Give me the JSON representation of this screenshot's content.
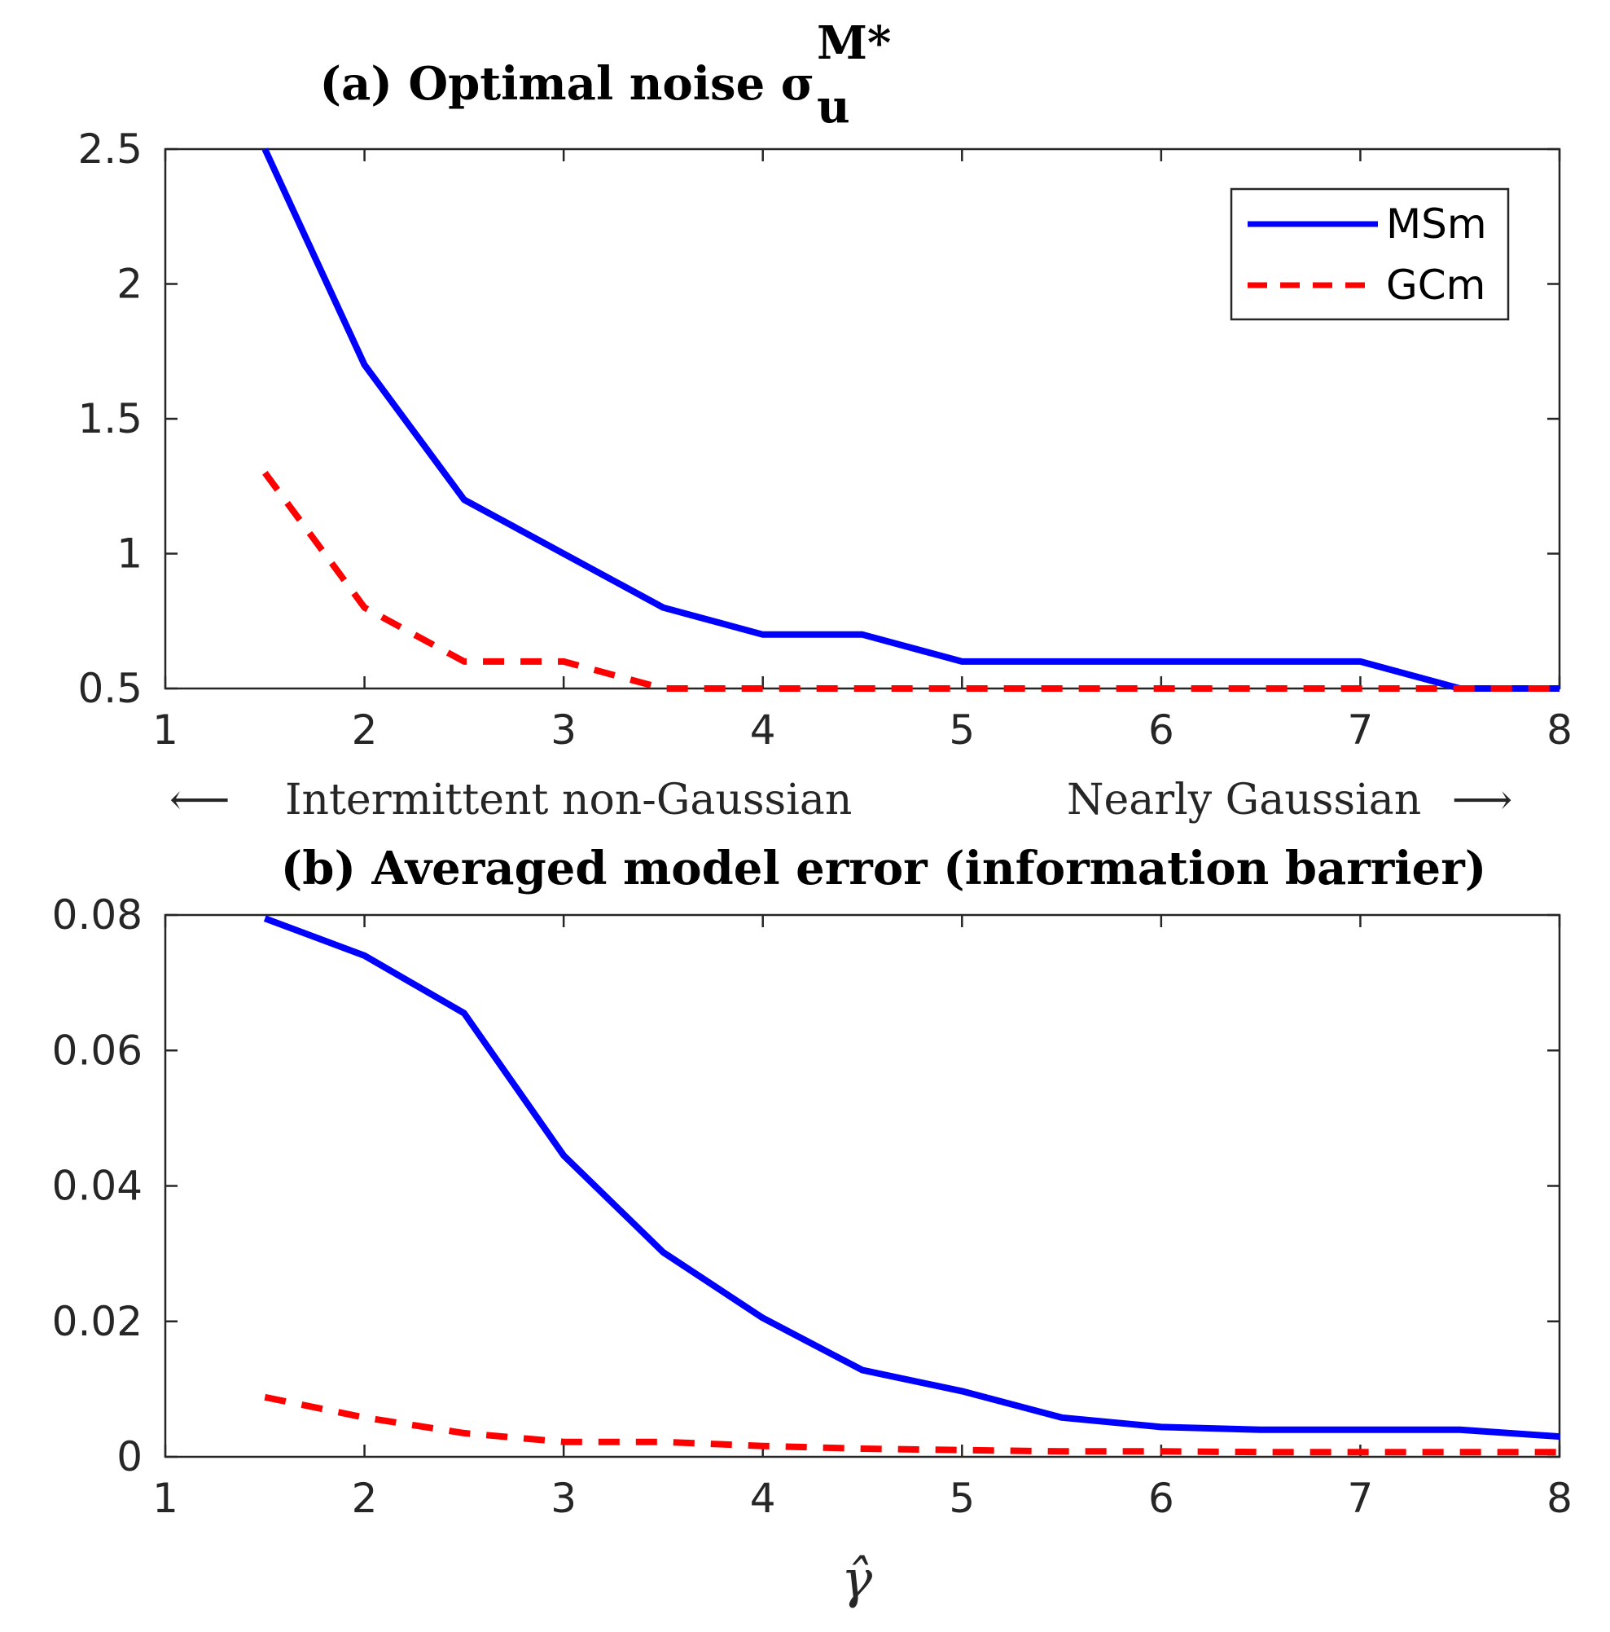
{
  "chart_data": [
    {
      "id": "a",
      "type": "line",
      "title": "(a) Optimal noise σ",
      "title_sub": "u",
      "title_sup": "M*",
      "xlim": [
        1,
        8
      ],
      "ylim": [
        0.5,
        2.5
      ],
      "xticks": [
        1,
        2,
        3,
        4,
        5,
        6,
        7,
        8
      ],
      "yticks": [
        0.5,
        1,
        1.5,
        2,
        2.5
      ],
      "ytick_labels": [
        "0.5",
        "1",
        "1.5",
        "2",
        "2.5"
      ],
      "legend": {
        "position": "top-right",
        "entries": [
          "MSm",
          "GCm"
        ]
      },
      "series": [
        {
          "name": "MSm",
          "color": "#0000ff",
          "style": "solid",
          "x": [
            1.5,
            2,
            2.5,
            3,
            3.5,
            4,
            4.5,
            5,
            5.5,
            6,
            6.5,
            7,
            7.5,
            8
          ],
          "y": [
            2.5,
            1.7,
            1.2,
            1.0,
            0.8,
            0.7,
            0.7,
            0.6,
            0.6,
            0.6,
            0.6,
            0.6,
            0.5,
            0.5
          ]
        },
        {
          "name": "GCm",
          "color": "#ff0000",
          "style": "dashed",
          "x": [
            1.5,
            2,
            2.5,
            3,
            3.5,
            4,
            4.5,
            5,
            5.5,
            6,
            6.5,
            7,
            7.5,
            8
          ],
          "y": [
            1.3,
            0.8,
            0.6,
            0.6,
            0.5,
            0.5,
            0.5,
            0.5,
            0.5,
            0.5,
            0.5,
            0.5,
            0.5,
            0.5
          ]
        }
      ],
      "annotations": {
        "left_arrow": "⟵",
        "left": "Intermittent non-Gaussian",
        "right": "Nearly Gaussian",
        "right_arrow": "⟶"
      }
    },
    {
      "id": "b",
      "type": "line",
      "title": "(b)  Averaged model error (information barrier)",
      "xlabel": "γ̂",
      "xlim": [
        1,
        8
      ],
      "ylim": [
        0,
        0.08
      ],
      "xticks": [
        1,
        2,
        3,
        4,
        5,
        6,
        7,
        8
      ],
      "yticks": [
        0,
        0.02,
        0.04,
        0.06,
        0.08
      ],
      "ytick_labels": [
        "0",
        "0.02",
        "0.04",
        "0.06",
        "0.08"
      ],
      "series": [
        {
          "name": "MSm",
          "color": "#0000ff",
          "style": "solid",
          "x": [
            1.5,
            2,
            2.5,
            3,
            3.5,
            4,
            4.5,
            5,
            5.5,
            6,
            6.5,
            7,
            7.5,
            8
          ],
          "y": [
            0.0795,
            0.074,
            0.0655,
            0.0445,
            0.0302,
            0.0205,
            0.0128,
            0.0097,
            0.0058,
            0.0044,
            0.004,
            0.004,
            0.004,
            0.003
          ]
        },
        {
          "name": "GCm",
          "color": "#ff0000",
          "style": "dashed",
          "x": [
            1.5,
            2,
            2.5,
            3,
            3.5,
            4,
            4.5,
            5,
            5.5,
            6,
            6.5,
            7,
            7.5,
            8
          ],
          "y": [
            0.0088,
            0.0058,
            0.0035,
            0.0022,
            0.0022,
            0.0016,
            0.0012,
            0.001,
            0.0008,
            0.0008,
            0.0007,
            0.0007,
            0.0007,
            0.0007
          ]
        }
      ]
    }
  ]
}
